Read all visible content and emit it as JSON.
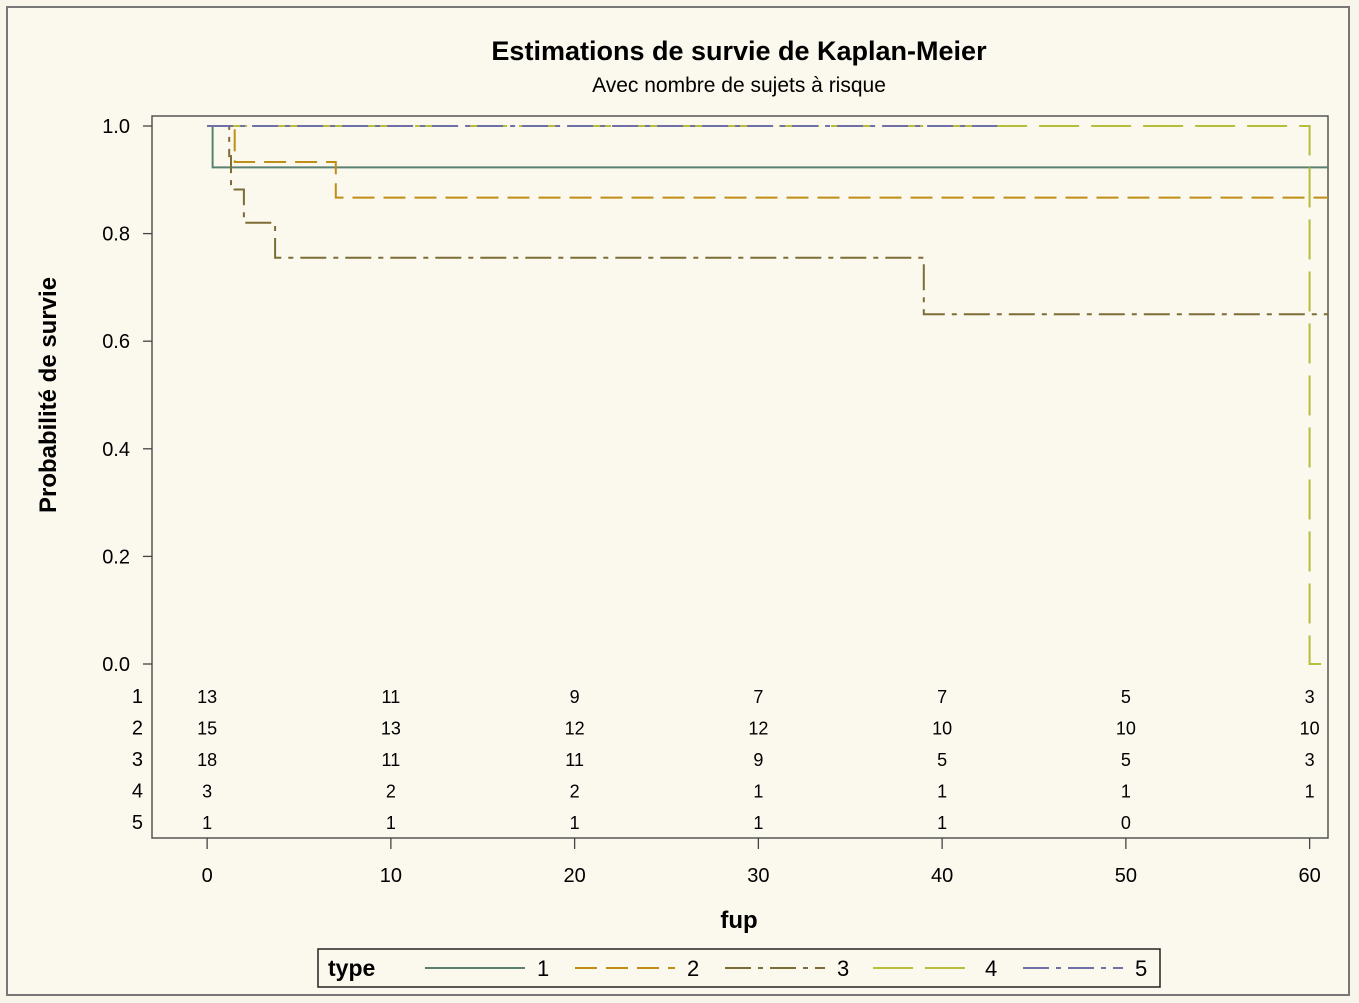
{
  "chart_data": {
    "type": "line",
    "step": true,
    "title": "Estimations de survie de Kaplan-Meier",
    "subtitle": "Avec nombre de sujets à risque",
    "xlabel": "fup",
    "ylabel": "Probabilité de survie",
    "xlim": [
      -3,
      61
    ],
    "ylim": [
      0,
      1
    ],
    "x_ticks": [
      "0",
      "10",
      "20",
      "30",
      "40",
      "50",
      "60"
    ],
    "y_ticks": [
      "0.0",
      "0.2",
      "0.4",
      "0.6",
      "0.8",
      "1.0"
    ],
    "legend_title": "type",
    "legend_position": "bottom",
    "series": [
      {
        "name": "1",
        "color": "#5b8070",
        "dash": "solid",
        "points": [
          [
            0,
            1.0
          ],
          [
            0.3,
            1.0
          ],
          [
            0.3,
            0.923
          ],
          [
            61,
            0.923
          ]
        ]
      },
      {
        "name": "2",
        "color": "#c08e14",
        "dash": "dashed",
        "points": [
          [
            0,
            1.0
          ],
          [
            1.5,
            1.0
          ],
          [
            1.5,
            0.933
          ],
          [
            7,
            0.933
          ],
          [
            7,
            0.867
          ],
          [
            61,
            0.867
          ]
        ]
      },
      {
        "name": "3",
        "color": "#7c6d36",
        "dash": "dashdot",
        "points": [
          [
            0,
            1.0
          ],
          [
            1.2,
            1.0
          ],
          [
            1.2,
            0.944
          ],
          [
            1.3,
            0.944
          ],
          [
            1.3,
            0.882
          ],
          [
            2,
            0.882
          ],
          [
            2,
            0.82
          ],
          [
            3.7,
            0.82
          ],
          [
            3.7,
            0.755
          ],
          [
            39,
            0.755
          ],
          [
            39,
            0.65
          ],
          [
            61,
            0.65
          ]
        ]
      },
      {
        "name": "4",
        "color": "#b6be3c",
        "dash": "longdash",
        "points": [
          [
            0,
            1.0
          ],
          [
            60,
            1.0
          ],
          [
            60,
            0.0
          ],
          [
            61,
            0.0
          ]
        ]
      },
      {
        "name": "5",
        "color": "#7070a8",
        "dash": "dashdot",
        "points": [
          [
            0,
            1.0
          ],
          [
            43,
            1.0
          ]
        ]
      }
    ],
    "at_risk": {
      "times": [
        0,
        10,
        20,
        30,
        40,
        50,
        60
      ],
      "rows": [
        {
          "label": "1",
          "values": [
            "13",
            "11",
            "9",
            "7",
            "7",
            "5",
            "3"
          ]
        },
        {
          "label": "2",
          "values": [
            "15",
            "13",
            "12",
            "12",
            "10",
            "10",
            "10"
          ]
        },
        {
          "label": "3",
          "values": [
            "18",
            "11",
            "11",
            "9",
            "5",
            "5",
            "3"
          ]
        },
        {
          "label": "4",
          "values": [
            "3",
            "2",
            "2",
            "1",
            "1",
            "1",
            "1"
          ]
        },
        {
          "label": "5",
          "values": [
            "1",
            "1",
            "1",
            "1",
            "1",
            "0",
            ""
          ]
        }
      ]
    }
  }
}
